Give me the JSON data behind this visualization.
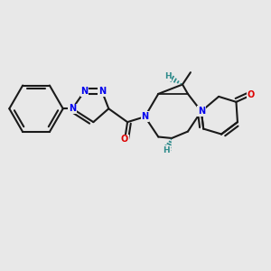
{
  "bg_color": "#e8e8e8",
  "bond_color": "#1a1a1a",
  "N_color": "#0000ee",
  "O_color": "#dd0000",
  "stereo_color": "#2e8b8b",
  "bond_lw": 1.5,
  "figsize": [
    3.0,
    3.0
  ],
  "dpi": 100,
  "xlim": [
    -1.0,
    9.0
  ],
  "ylim": [
    -1.0,
    8.0
  ]
}
